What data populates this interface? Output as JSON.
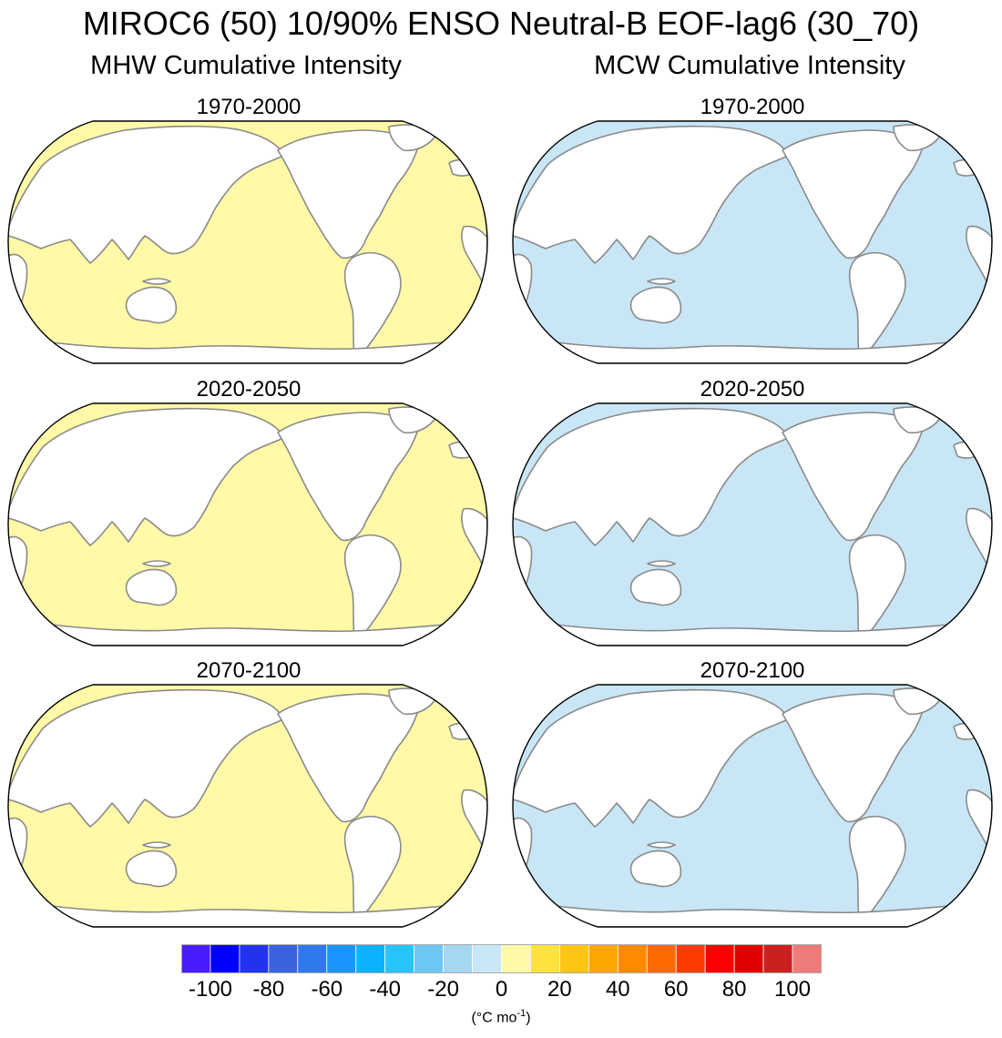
{
  "title": "MIROC6 (50) 10/90% ENSO Neutral-B EOF-lag6 (30_70)",
  "columns": [
    {
      "title": "MHW Cumulative Intensity",
      "ocean_color": "#fff9a8"
    },
    {
      "title": "MCW Cumulative Intensity",
      "ocean_color": "#c8e6f6"
    }
  ],
  "periods": [
    "1970-2000",
    "2020-2050",
    "2070-2100"
  ],
  "colorbar": {
    "colors": [
      "#4b1bff",
      "#0000ff",
      "#2233ee",
      "#3b63e0",
      "#2f78ee",
      "#1a95ff",
      "#0bb2ff",
      "#27c3fb",
      "#6dc6f3",
      "#a4d7f2",
      "#c8e6f6",
      "#fff9a8",
      "#ffe23e",
      "#ffc515",
      "#ffa600",
      "#ff8a00",
      "#ff6a00",
      "#ff3c00",
      "#ff0000",
      "#e00000",
      "#cc2020",
      "#ee7a7a"
    ],
    "tick_labels": [
      "-100",
      "-80",
      "-60",
      "-40",
      "-20",
      "0",
      "20",
      "40",
      "60",
      "80",
      "100"
    ],
    "units_main": "(°C mo",
    "units_sup": "-1",
    "units_close": ")"
  }
}
